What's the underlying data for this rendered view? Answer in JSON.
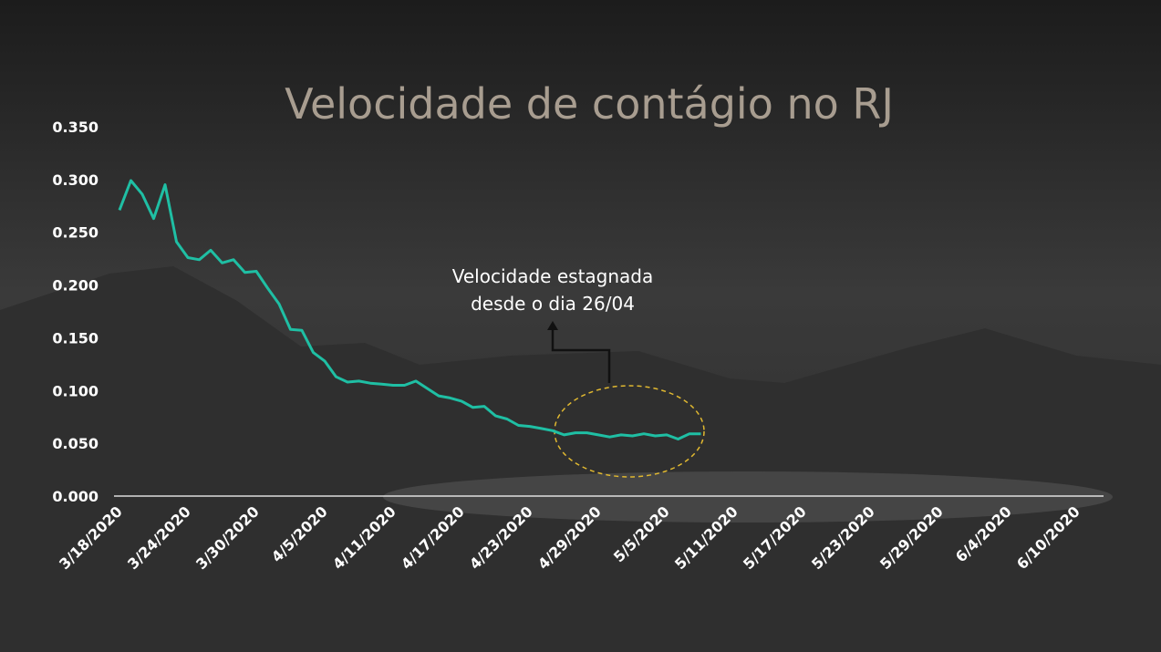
{
  "chart_data": {
    "type": "line",
    "title": "Velocidade de contágio no RJ",
    "annotation": [
      "Velocidade estagnada",
      "desde o dia 26/04"
    ],
    "x": [
      "3/18/2020",
      "3/19/2020",
      "3/20/2020",
      "3/21/2020",
      "3/22/2020",
      "3/23/2020",
      "3/24/2020",
      "3/25/2020",
      "3/26/2020",
      "3/27/2020",
      "3/28/2020",
      "3/29/2020",
      "3/30/2020",
      "3/31/2020",
      "4/1/2020",
      "4/2/2020",
      "4/3/2020",
      "4/4/2020",
      "4/5/2020",
      "4/6/2020",
      "4/7/2020",
      "4/8/2020",
      "4/9/2020",
      "4/10/2020",
      "4/11/2020",
      "4/12/2020",
      "4/13/2020",
      "4/14/2020",
      "4/15/2020",
      "4/16/2020",
      "4/17/2020",
      "4/18/2020",
      "4/19/2020",
      "4/20/2020",
      "4/21/2020",
      "4/22/2020",
      "4/23/2020",
      "4/24/2020",
      "4/25/2020",
      "4/26/2020",
      "4/27/2020",
      "4/28/2020",
      "4/29/2020",
      "4/30/2020",
      "5/1/2020",
      "5/2/2020",
      "5/3/2020",
      "5/4/2020",
      "5/5/2020",
      "5/6/2020",
      "5/7/2020",
      "5/8/2020"
    ],
    "series": [
      {
        "color": "#1fbfa4",
        "values": [
          0.271,
          0.299,
          0.286,
          0.263,
          0.295,
          0.241,
          0.226,
          0.224,
          0.233,
          0.221,
          0.224,
          0.212,
          0.213,
          0.197,
          0.182,
          0.158,
          0.157,
          0.136,
          0.128,
          0.113,
          0.108,
          0.109,
          0.107,
          0.106,
          0.105,
          0.105,
          0.109,
          0.102,
          0.095,
          0.093,
          0.09,
          0.084,
          0.085,
          0.076,
          0.073,
          0.067,
          0.066,
          0.064,
          0.062,
          0.058,
          0.06,
          0.06,
          0.058,
          0.056,
          0.058,
          0.057,
          0.059,
          0.057,
          0.058,
          0.054,
          0.059,
          0.059
        ]
      }
    ],
    "xlim": [
      "3/18/2020",
      "6/12/2020"
    ],
    "xticks": [
      "3/18/2020",
      "3/24/2020",
      "3/30/2020",
      "4/5/2020",
      "4/11/2020",
      "4/17/2020",
      "4/23/2020",
      "4/29/2020",
      "5/5/2020",
      "5/11/2020",
      "5/17/2020",
      "5/23/2020",
      "5/29/2020",
      "6/4/2020",
      "6/10/2020"
    ],
    "ylim": [
      0,
      0.35
    ],
    "yticks": [
      {
        "value": 0,
        "label": "0.000"
      },
      {
        "value": 0.05,
        "label": "0.050"
      },
      {
        "value": 0.1,
        "label": "0.100"
      },
      {
        "value": 0.15,
        "label": "0.150"
      },
      {
        "value": 0.2,
        "label": "0.200"
      },
      {
        "value": 0.25,
        "label": "0.250"
      },
      {
        "value": 0.3,
        "label": "0.300"
      },
      {
        "value": 0.35,
        "label": "0.350"
      }
    ]
  }
}
